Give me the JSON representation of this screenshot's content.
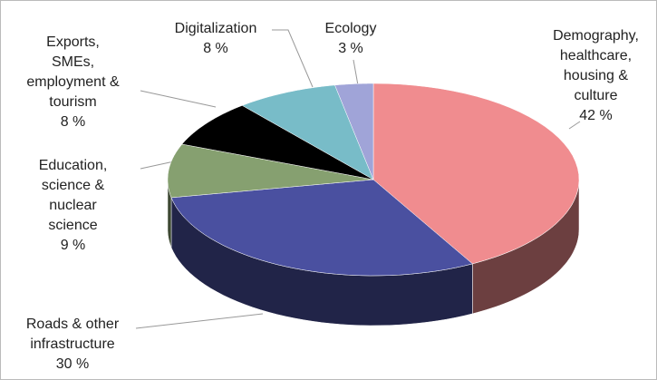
{
  "chart_data": {
    "type": "pie3d",
    "categories": [
      "Demography, healthcare, housing & culture",
      "Roads & other infrastructure",
      "Education, science & nuclear science",
      "Exports, SMEs, employment & tourism",
      "Digitalization",
      "Ecology"
    ],
    "values": [
      42,
      30,
      9,
      8,
      8,
      3
    ],
    "value_labels": [
      "42 %",
      "30 %",
      "9 %",
      "8 %",
      "8 %",
      "3 %"
    ],
    "colors": [
      "#f08c8f",
      "#4a50a0",
      "#86a070",
      "#000000",
      "#78bcc8",
      "#a0a4d8"
    ]
  }
}
